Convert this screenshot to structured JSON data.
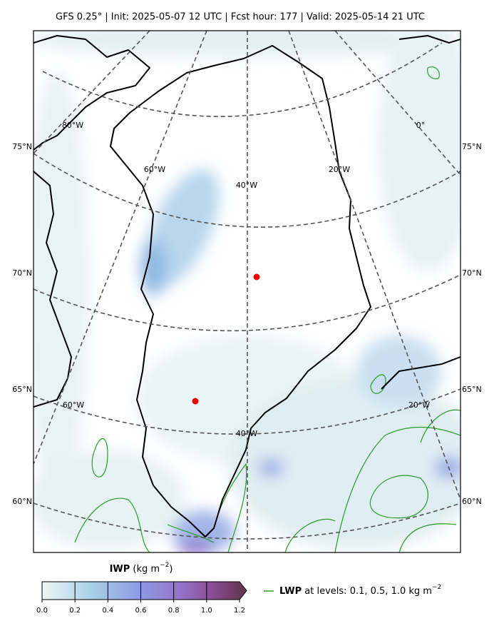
{
  "header": {
    "title": "GFS 0.25°  |  Init: 2025-05-07 12 UTC  |  Fcst hour: 177  |  Valid: 2025-05-14 21 UTC"
  },
  "map": {
    "lat_labels_left": [
      "75°N",
      "70°N",
      "65°N",
      "60°N"
    ],
    "lat_labels_right": [
      "75°N",
      "70°N",
      "65°N",
      "60°N"
    ],
    "lon_labels": [
      "80°W",
      "0°",
      "60°W",
      "40°W",
      "20°W",
      "60°W",
      "40°W",
      "20°W"
    ]
  },
  "colorbar": {
    "label": "IWP",
    "unit": "(kg m",
    "unit_exp": "−2",
    "unit_close": ")",
    "ticks": [
      "0.0",
      "0.2",
      "0.4",
      "0.6",
      "0.8",
      "1.0",
      "1.2"
    ]
  },
  "legend": {
    "label": "LWP",
    "text": "at levels: 0.1, 0.5, 1.0  kg m",
    "exp": "−2"
  }
}
